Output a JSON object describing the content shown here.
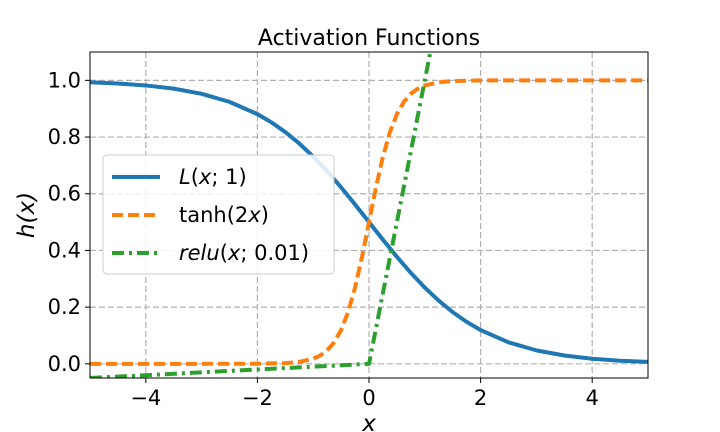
{
  "chart_data": {
    "type": "line",
    "title": "Activation Functions",
    "xlabel": "x",
    "ylabel": "h(x)",
    "xlim": [
      -5,
      5
    ],
    "ylim": [
      -0.05,
      1.1
    ],
    "xticks": [
      -4,
      -2,
      0,
      2,
      4
    ],
    "xtick_labels": [
      "−4",
      "−2",
      "0",
      "2",
      "4"
    ],
    "yticks": [
      0.0,
      0.2,
      0.4,
      0.6,
      0.8,
      1.0
    ],
    "ytick_labels": [
      "0.0",
      "0.2",
      "0.4",
      "0.6",
      "0.8",
      "1.0"
    ],
    "grid": true,
    "legend_position": "center-left",
    "series": [
      {
        "name": "L(x; 1)",
        "color": "#1f77b4",
        "style": "solid",
        "x": [
          -5,
          -4.5,
          -4,
          -3.5,
          -3,
          -2.5,
          -2,
          -1.75,
          -1.5,
          -1.25,
          -1,
          -0.75,
          -0.5,
          -0.25,
          0,
          0.25,
          0.5,
          0.75,
          1,
          1.25,
          1.5,
          1.75,
          2,
          2.5,
          3,
          3.5,
          4,
          4.5,
          5
        ],
        "y": [
          0.9933,
          0.989,
          0.982,
          0.9707,
          0.9526,
          0.9241,
          0.8808,
          0.852,
          0.8176,
          0.7773,
          0.7311,
          0.6792,
          0.6225,
          0.5622,
          0.5,
          0.4378,
          0.3775,
          0.3208,
          0.2689,
          0.2227,
          0.1824,
          0.148,
          0.1192,
          0.0759,
          0.0474,
          0.0293,
          0.018,
          0.011,
          0.0067
        ]
      },
      {
        "name": "tanh(2x)",
        "color": "#ff7f0e",
        "style": "dashed",
        "x": [
          -5,
          -3,
          -2,
          -1.5,
          -1.25,
          -1,
          -0.875,
          -0.75,
          -0.625,
          -0.5,
          -0.375,
          -0.25,
          -0.125,
          0,
          0.125,
          0.25,
          0.375,
          0.5,
          0.625,
          0.75,
          0.875,
          1,
          1.25,
          1.5,
          2,
          3,
          5
        ],
        "y": [
          0,
          0,
          0.0003,
          0.0025,
          0.0067,
          0.018,
          0.0293,
          0.0474,
          0.0759,
          0.1192,
          0.1824,
          0.2689,
          0.3775,
          0.5,
          0.6225,
          0.7311,
          0.8176,
          0.8808,
          0.9241,
          0.9526,
          0.9707,
          0.982,
          0.9933,
          0.9975,
          0.9997,
          1,
          1
        ]
      },
      {
        "name": "relu(x; 0.01)",
        "color": "#2ca02c",
        "style": "dashdot",
        "x": [
          -5,
          0,
          1.1
        ],
        "y": [
          -0.05,
          0,
          1.1
        ]
      }
    ]
  }
}
